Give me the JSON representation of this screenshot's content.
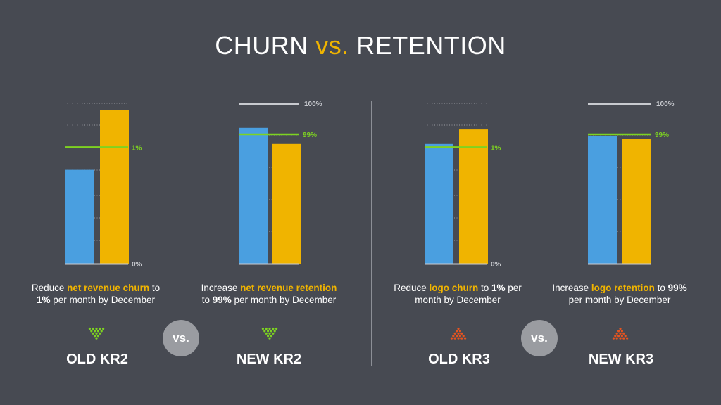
{
  "title": {
    "main1": "CHURN ",
    "vs": "vs.",
    "main2": " RETENTION"
  },
  "colors": {
    "blue": "#4a9fe0",
    "yellow": "#f0b400",
    "green": "#7ed321",
    "orange": "#e8541f",
    "background": "#474a52"
  },
  "chart_data": [
    {
      "type": "bar",
      "series": [
        {
          "values": [
            58
          ]
        },
        {
          "values": [
            95
          ]
        }
      ],
      "target": {
        "value": 72,
        "label": "1%"
      },
      "baseline_label": "0%",
      "ylim": [
        0,
        100
      ]
    },
    {
      "type": "bar",
      "series": [
        {
          "values": [
            84
          ]
        },
        {
          "values": [
            74
          ]
        }
      ],
      "target": {
        "value": 80,
        "label": "99%"
      },
      "top_label": "100%",
      "ylim": [
        0,
        100
      ]
    },
    {
      "type": "bar",
      "series": [
        {
          "values": [
            74
          ]
        },
        {
          "values": [
            83
          ]
        }
      ],
      "target": {
        "value": 72,
        "label": "1%"
      },
      "baseline_label": "0%",
      "ylim": [
        0,
        100
      ]
    },
    {
      "type": "bar",
      "series": [
        {
          "values": [
            79
          ]
        },
        {
          "values": [
            77
          ]
        }
      ],
      "target": {
        "value": 80,
        "label": "99%"
      },
      "top_label": "100%",
      "ylim": [
        0,
        100
      ]
    }
  ],
  "panels": [
    {
      "cap_pre": "Reduce ",
      "cap_hl": "net revenue churn",
      "cap_mid": " to ",
      "cap_bold": "1%",
      "cap_post": " per month by December",
      "kr": "OLD KR2",
      "icon": "green-triangle-icon"
    },
    {
      "cap_pre": "Increase ",
      "cap_hl": "net revenue retention",
      "cap_mid": " to ",
      "cap_bold": "99%",
      "cap_post": " per month by December",
      "kr": "NEW KR2",
      "icon": "green-triangle-icon"
    },
    {
      "cap_pre": "Reduce ",
      "cap_hl": "logo churn",
      "cap_mid": " to ",
      "cap_bold": "1%",
      "cap_post": " per month by December",
      "kr": "OLD KR3",
      "icon": "orange-triangle-icon"
    },
    {
      "cap_pre": "Increase ",
      "cap_hl": "logo retention",
      "cap_mid": " to ",
      "cap_bold": "99%",
      "cap_post": " per month by December",
      "kr": "NEW KR3",
      "icon": "orange-triangle-icon"
    }
  ],
  "vs_badge": "vs."
}
